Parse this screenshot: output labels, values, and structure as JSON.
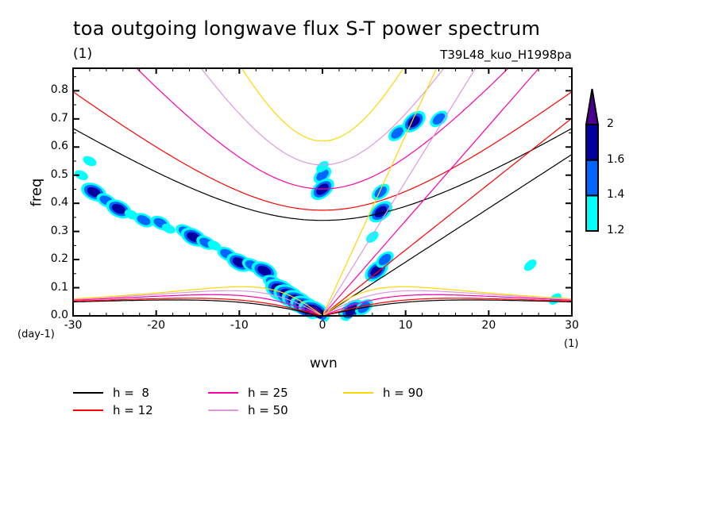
{
  "chart_data": {
    "type": "heatmap",
    "title": "toa outgoing longwave flux S-T power spectrum",
    "subtitle_left": "(1)",
    "subtitle_right": "T39L48_kuo_H1998pa",
    "xlabel": "wvn",
    "ylabel": "freq",
    "x_unit": "(1)",
    "y_unit": "(day-1)",
    "xlim": [
      -30,
      30
    ],
    "ylim": [
      0,
      0.88
    ],
    "xticks": [
      "-30",
      "-20",
      "-10",
      "0",
      "10",
      "20",
      "30"
    ],
    "xtick_values": [
      -30,
      -20,
      -10,
      0,
      10,
      20,
      30
    ],
    "yticks": [
      "0.0",
      "0.1",
      "0.2",
      "0.3",
      "0.4",
      "0.5",
      "0.6",
      "0.7",
      "0.8"
    ],
    "ytick_values": [
      0,
      0.1,
      0.2,
      0.3,
      0.4,
      0.5,
      0.6,
      0.7,
      0.8
    ],
    "colorbar": {
      "levels": [
        "1.2",
        "1.4",
        "1.6",
        "2"
      ],
      "level_values": [
        1.2,
        1.4,
        1.6,
        2.0
      ],
      "colors": [
        "#00ffff",
        "#0066ff",
        "#0000a0",
        "#4b0091"
      ],
      "extend": "max"
    },
    "dispersion_curves": [
      {
        "label": "h =  8",
        "h": 8,
        "color": "#000000"
      },
      {
        "label": "h = 12",
        "h": 12,
        "color": "#ff0000"
      },
      {
        "label": "h = 25",
        "h": 25,
        "color": "#ff00aa"
      },
      {
        "label": "h = 50",
        "h": 50,
        "color": "#dd99dd"
      },
      {
        "label": "h = 90",
        "h": 90,
        "color": "#ffd700"
      }
    ],
    "contour_blobs": [
      {
        "wvn": -27.5,
        "freq": 0.44,
        "level": 1.6
      },
      {
        "wvn": -26,
        "freq": 0.41,
        "level": 1.4
      },
      {
        "wvn": -24.5,
        "freq": 0.38,
        "level": 1.6
      },
      {
        "wvn": -23,
        "freq": 0.36,
        "level": 1.2
      },
      {
        "wvn": -21.5,
        "freq": 0.34,
        "level": 1.4
      },
      {
        "wvn": -19.5,
        "freq": 0.33,
        "level": 1.4
      },
      {
        "wvn": -18.5,
        "freq": 0.31,
        "level": 1.2
      },
      {
        "wvn": -16.5,
        "freq": 0.3,
        "level": 1.4
      },
      {
        "wvn": -15.5,
        "freq": 0.28,
        "level": 1.6
      },
      {
        "wvn": -14,
        "freq": 0.26,
        "level": 1.4
      },
      {
        "wvn": -13,
        "freq": 0.25,
        "level": 1.2
      },
      {
        "wvn": -11.5,
        "freq": 0.22,
        "level": 1.4
      },
      {
        "wvn": -10,
        "freq": 0.19,
        "level": 1.6
      },
      {
        "wvn": -8.5,
        "freq": 0.18,
        "level": 1.4
      },
      {
        "wvn": -7,
        "freq": 0.16,
        "level": 1.6
      },
      {
        "wvn": -6,
        "freq": 0.12,
        "level": 1.4
      },
      {
        "wvn": -5,
        "freq": 0.09,
        "level": 2.0
      },
      {
        "wvn": -4,
        "freq": 0.07,
        "level": 2.0
      },
      {
        "wvn": -3,
        "freq": 0.05,
        "level": 2.0
      },
      {
        "wvn": -2,
        "freq": 0.03,
        "level": 2.0
      },
      {
        "wvn": -1,
        "freq": 0.015,
        "level": 2.0
      },
      {
        "wvn": 0,
        "freq": 0.5,
        "level": 1.4
      },
      {
        "wvn": 0,
        "freq": 0.45,
        "level": 1.6
      },
      {
        "wvn": 0,
        "freq": 0.53,
        "level": 1.2
      },
      {
        "wvn": 3.5,
        "freq": 0.02,
        "level": 1.6
      },
      {
        "wvn": 5,
        "freq": 0.03,
        "level": 1.4
      },
      {
        "wvn": 6.5,
        "freq": 0.16,
        "level": 1.6
      },
      {
        "wvn": 7,
        "freq": 0.37,
        "level": 1.6
      },
      {
        "wvn": 7.5,
        "freq": 0.2,
        "level": 1.4
      },
      {
        "wvn": 6,
        "freq": 0.28,
        "level": 1.2
      },
      {
        "wvn": 9,
        "freq": 0.65,
        "level": 1.4
      },
      {
        "wvn": 11,
        "freq": 0.69,
        "level": 1.6
      },
      {
        "wvn": 14,
        "freq": 0.7,
        "level": 1.4
      },
      {
        "wvn": 7,
        "freq": 0.44,
        "level": 1.4
      },
      {
        "wvn": -28,
        "freq": 0.55,
        "level": 1.2
      },
      {
        "wvn": -29,
        "freq": 0.5,
        "level": 1.2
      },
      {
        "wvn": 28,
        "freq": 0.06,
        "level": 1.2
      },
      {
        "wvn": 25,
        "freq": 0.18,
        "level": 1.2
      }
    ]
  },
  "legend": [
    {
      "label": "h =  8",
      "color": "#000000"
    },
    {
      "label": "h = 12",
      "color": "#ff0000"
    },
    {
      "label": "h = 25",
      "color": "#ff00aa"
    },
    {
      "label": "h = 50",
      "color": "#dd99dd"
    },
    {
      "label": "h = 90",
      "color": "#ffd700"
    }
  ]
}
